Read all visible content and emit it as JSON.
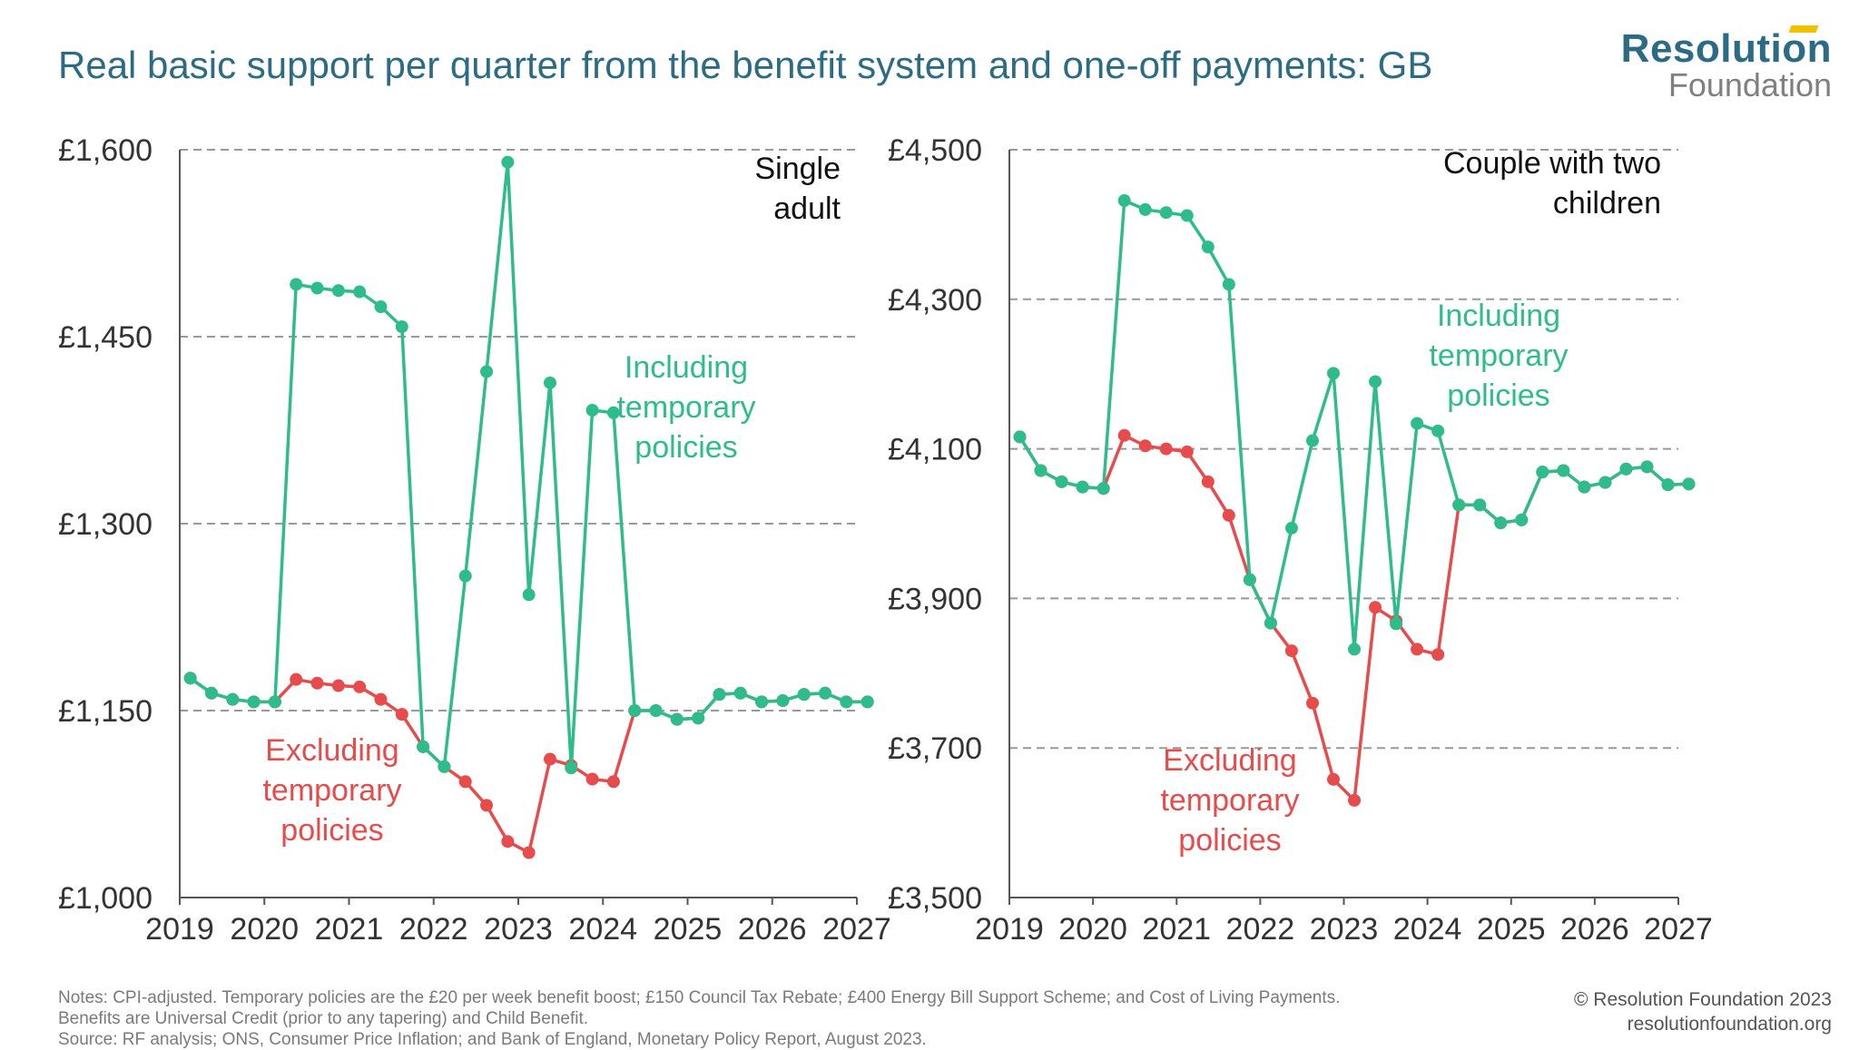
{
  "title": "Real basic support per quarter from the benefit system and one-off payments: GB",
  "logo": {
    "line1": "Resolution",
    "line2": "Foundation"
  },
  "colors": {
    "including": "#2ebd8a",
    "excluding": "#e84b4b",
    "title": "#2b6b84",
    "axis": "#333333",
    "grid": "#999999"
  },
  "notes": {
    "line1": "Notes: CPI-adjusted. Temporary policies are the £20 per week benefit boost; £150 Council Tax Rebate; £400 Energy Bill Support Scheme; and Cost of Living Payments.",
    "line2": "Benefits are Universal Credit (prior to any tapering) and Child Benefit.",
    "line3": "Source: RF analysis; ONS, Consumer Price Inflation; and Bank of England, Monetary Policy Report, August 2023."
  },
  "credit": {
    "line1": "© Resolution Foundation 2023",
    "line2": "resolutionfoundation.org"
  },
  "chart_data": [
    {
      "type": "line",
      "panel_title": [
        "Single",
        "adult"
      ],
      "xlim": [
        2019,
        2027
      ],
      "ylim": [
        1000,
        1600
      ],
      "x_ticks": [
        2019,
        2020,
        2021,
        2022,
        2023,
        2024,
        2025,
        2026,
        2027
      ],
      "x_tick_labels": [
        "2019",
        "2020",
        "2021",
        "2022",
        "2023",
        "2024",
        "2025",
        "2026",
        "2027"
      ],
      "y_ticks": [
        1000,
        1150,
        1300,
        1450,
        1600
      ],
      "y_tick_labels": [
        "£1,000",
        "£1,150",
        "£1,300",
        "£1,450",
        "£1,600"
      ],
      "grid": "horizontal dashed",
      "x": [
        2019.125,
        2019.375,
        2019.625,
        2019.875,
        2020.125,
        2020.375,
        2020.625,
        2020.875,
        2021.125,
        2021.375,
        2021.625,
        2021.875,
        2022.125,
        2022.375,
        2022.625,
        2022.875,
        2023.125,
        2023.375,
        2023.625,
        2023.875,
        2024.125,
        2024.375,
        2024.625,
        2024.875,
        2025.125,
        2025.375,
        2025.625,
        2025.875,
        2026.125,
        2026.375,
        2026.625,
        2026.875,
        2027.125
      ],
      "series": [
        {
          "name_lines": [
            "Including",
            "temporary",
            "policies"
          ],
          "color": "#2ebd8a",
          "values": [
            1176,
            1164,
            1159,
            1157,
            1157,
            1492,
            1489,
            1487,
            1486,
            1474,
            1458,
            1121,
            1105,
            1258,
            1422,
            1590,
            1243,
            1413,
            1104,
            1391,
            1389,
            1150,
            1150,
            1143,
            1144,
            1163,
            1164,
            1157,
            1158,
            1163,
            1164,
            1157,
            1157
          ]
        },
        {
          "name_lines": [
            "Excluding",
            "temporary",
            "policies"
          ],
          "color": "#e84b4b",
          "values": [
            1176,
            1164,
            1159,
            1157,
            1157,
            1175,
            1172,
            1170,
            1169,
            1159,
            1147,
            1121,
            1105,
            1093,
            1074,
            1045,
            1036,
            1111,
            1106,
            1095,
            1093,
            1150,
            1150,
            1143,
            1144,
            1163,
            1164,
            1157,
            1158,
            1163,
            1164,
            1157,
            1157
          ]
        }
      ]
    },
    {
      "type": "line",
      "panel_title": [
        "Couple with two",
        "children"
      ],
      "xlim": [
        2019,
        2027
      ],
      "ylim": [
        3500,
        4500
      ],
      "x_ticks": [
        2019,
        2020,
        2021,
        2022,
        2023,
        2024,
        2025,
        2026,
        2027
      ],
      "x_tick_labels": [
        "2019",
        "2020",
        "2021",
        "2022",
        "2023",
        "2024",
        "2025",
        "2026",
        "2027"
      ],
      "y_ticks": [
        3500,
        3700,
        3900,
        4100,
        4300,
        4500
      ],
      "y_tick_labels": [
        "£3,500",
        "£3,700",
        "£3,900",
        "£4,100",
        "£4,300",
        "£4,500"
      ],
      "grid": "horizontal dashed",
      "x": [
        2019.125,
        2019.375,
        2019.625,
        2019.875,
        2020.125,
        2020.375,
        2020.625,
        2020.875,
        2021.125,
        2021.375,
        2021.625,
        2021.875,
        2022.125,
        2022.375,
        2022.625,
        2022.875,
        2023.125,
        2023.375,
        2023.625,
        2023.875,
        2024.125,
        2024.375,
        2024.625,
        2024.875,
        2025.125,
        2025.375,
        2025.625,
        2025.875,
        2026.125,
        2026.375,
        2026.625,
        2026.875,
        2027.125
      ],
      "series": [
        {
          "name_lines": [
            "Including",
            "temporary",
            "policies"
          ],
          "color": "#2ebd8a",
          "values": [
            4116,
            4071,
            4056,
            4049,
            4047,
            4432,
            4420,
            4416,
            4412,
            4370,
            4320,
            3925,
            3867,
            3994,
            4111,
            4201,
            3832,
            4190,
            3866,
            4134,
            4124,
            4025,
            4025,
            4001,
            4005,
            4069,
            4071,
            4049,
            4055,
            4073,
            4076,
            4052,
            4053
          ]
        },
        {
          "name_lines": [
            "Excluding",
            "temporary",
            "policies"
          ],
          "color": "#e84b4b",
          "values": [
            4116,
            4071,
            4056,
            4049,
            4047,
            4118,
            4104,
            4100,
            4096,
            4056,
            4011,
            3925,
            3867,
            3830,
            3760,
            3658,
            3630,
            3888,
            3870,
            3832,
            3825,
            4025,
            4025,
            4001,
            4005,
            4069,
            4071,
            4049,
            4055,
            4073,
            4076,
            4052,
            4053
          ]
        }
      ]
    }
  ]
}
